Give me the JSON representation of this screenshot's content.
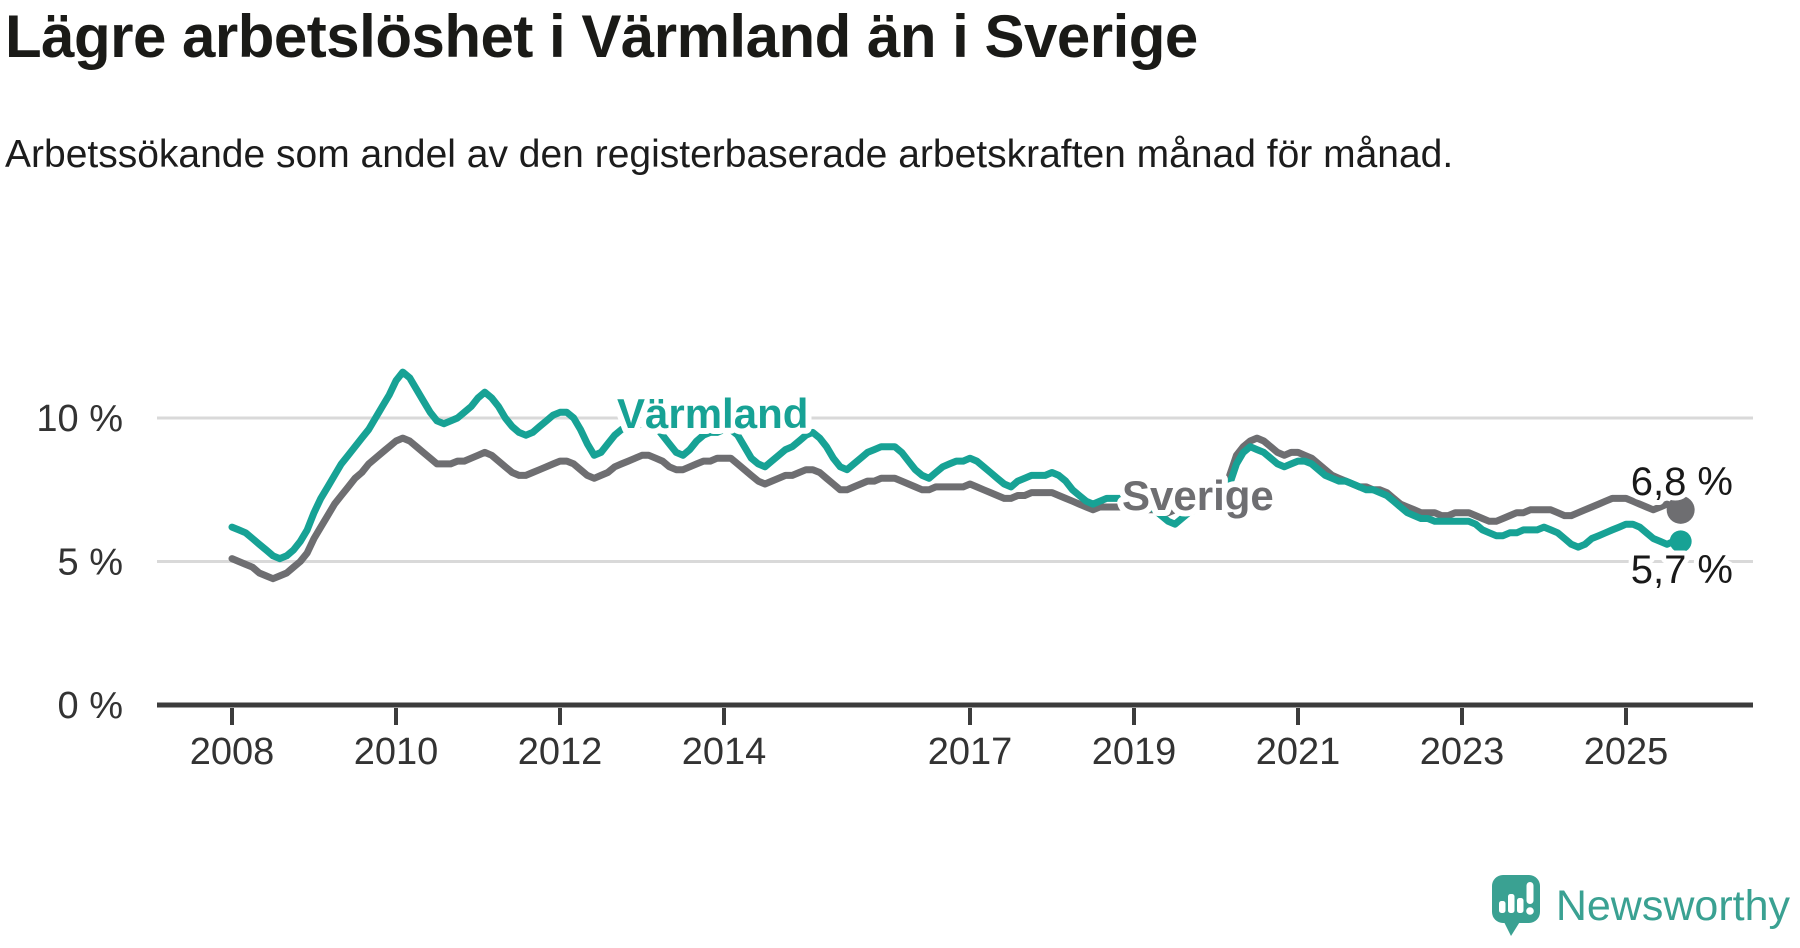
{
  "header": {
    "title": "Lägre arbetslöshet i Värmland än i Sverige",
    "subtitle": "Arbetssökande som andel av den registerbaserade arbetskraften månad för månad."
  },
  "footer": {
    "brand": "Newsworthy"
  },
  "colors": {
    "varmland": "#17a295",
    "sverige": "#6e6e71",
    "axis": "#3c3c3c",
    "grid": "#d9d9d9",
    "text": "#333333",
    "end_label": "#191919",
    "logo": "#3aa192"
  },
  "chart_data": {
    "type": "line",
    "title": "Lägre arbetslöshet i Värmland än i Sverige",
    "subtitle": "Arbetssökande som andel av den registerbaserade arbetskraften månad för månad.",
    "unit": "percent",
    "x_interval": "month",
    "x_start": "2008-01",
    "x_end": "2025-09",
    "xtick_years": [
      2008,
      2010,
      2012,
      2014,
      2017,
      2019,
      2021,
      2023,
      2025
    ],
    "ytick_values": [
      0,
      5,
      10
    ],
    "ytick_labels": [
      "0 %",
      "5 %",
      "10 %"
    ],
    "ylim": [
      0,
      12.3
    ],
    "grid": "horizontal",
    "legend": "inline-labels",
    "series": [
      {
        "name": "Sverige",
        "color": "#6e6e71",
        "end_label": "6,8 %",
        "values": [
          5.1,
          5.0,
          4.9,
          4.8,
          4.6,
          4.5,
          4.4,
          4.5,
          4.6,
          4.8,
          5.0,
          5.3,
          5.8,
          6.2,
          6.6,
          7.0,
          7.3,
          7.6,
          7.9,
          8.1,
          8.4,
          8.6,
          8.8,
          9.0,
          9.2,
          9.3,
          9.2,
          9.0,
          8.8,
          8.6,
          8.4,
          8.4,
          8.4,
          8.5,
          8.5,
          8.6,
          8.7,
          8.8,
          8.7,
          8.5,
          8.3,
          8.1,
          8.0,
          8.0,
          8.1,
          8.2,
          8.3,
          8.4,
          8.5,
          8.5,
          8.4,
          8.2,
          8.0,
          7.9,
          8.0,
          8.1,
          8.3,
          8.4,
          8.5,
          8.6,
          8.7,
          8.7,
          8.6,
          8.5,
          8.3,
          8.2,
          8.2,
          8.3,
          8.4,
          8.5,
          8.5,
          8.6,
          8.6,
          8.6,
          8.4,
          8.2,
          8.0,
          7.8,
          7.7,
          7.8,
          7.9,
          8.0,
          8.0,
          8.1,
          8.2,
          8.2,
          8.1,
          7.9,
          7.7,
          7.5,
          7.5,
          7.6,
          7.7,
          7.8,
          7.8,
          7.9,
          7.9,
          7.9,
          7.8,
          7.7,
          7.6,
          7.5,
          7.5,
          7.6,
          7.6,
          7.6,
          7.6,
          7.6,
          7.7,
          7.6,
          7.5,
          7.4,
          7.3,
          7.2,
          7.2,
          7.3,
          7.3,
          7.4,
          7.4,
          7.4,
          7.4,
          7.3,
          7.2,
          7.1,
          7.0,
          6.9,
          6.8,
          6.9,
          6.9,
          6.9,
          6.9,
          7.0,
          7.0,
          6.9,
          6.8,
          6.8,
          6.7,
          6.7,
          6.8,
          6.9,
          7.0,
          7.1,
          7.1,
          7.2,
          7.3,
          7.4,
          8.0,
          8.7,
          9.0,
          9.2,
          9.3,
          9.2,
          9.0,
          8.8,
          8.7,
          8.8,
          8.8,
          8.7,
          8.6,
          8.4,
          8.2,
          8.0,
          7.9,
          7.8,
          7.7,
          7.6,
          7.6,
          7.5,
          7.5,
          7.4,
          7.2,
          7.0,
          6.9,
          6.8,
          6.7,
          6.7,
          6.7,
          6.6,
          6.6,
          6.7,
          6.7,
          6.7,
          6.6,
          6.5,
          6.4,
          6.4,
          6.5,
          6.6,
          6.7,
          6.7,
          6.8,
          6.8,
          6.8,
          6.8,
          6.7,
          6.6,
          6.6,
          6.7,
          6.8,
          6.9,
          7.0,
          7.1,
          7.2,
          7.2,
          7.2,
          7.1,
          7.0,
          6.9,
          6.8,
          6.9,
          7.0,
          6.9,
          6.8
        ]
      },
      {
        "name": "Värmland",
        "color": "#17a295",
        "end_label": "5,7 %",
        "values": [
          6.2,
          6.1,
          6.0,
          5.8,
          5.6,
          5.4,
          5.2,
          5.1,
          5.2,
          5.4,
          5.7,
          6.1,
          6.7,
          7.2,
          7.6,
          8.0,
          8.4,
          8.7,
          9.0,
          9.3,
          9.6,
          10.0,
          10.4,
          10.8,
          11.3,
          11.6,
          11.4,
          11.0,
          10.6,
          10.2,
          9.9,
          9.8,
          9.9,
          10.0,
          10.2,
          10.4,
          10.7,
          10.9,
          10.7,
          10.4,
          10.0,
          9.7,
          9.5,
          9.4,
          9.5,
          9.7,
          9.9,
          10.1,
          10.2,
          10.2,
          10.0,
          9.6,
          9.1,
          8.7,
          8.8,
          9.1,
          9.4,
          9.6,
          9.7,
          9.7,
          9.8,
          9.9,
          9.7,
          9.4,
          9.1,
          8.8,
          8.7,
          8.9,
          9.2,
          9.4,
          9.5,
          9.5,
          9.6,
          9.6,
          9.4,
          9.0,
          8.6,
          8.4,
          8.3,
          8.5,
          8.7,
          8.9,
          9.0,
          9.2,
          9.4,
          9.5,
          9.3,
          9.0,
          8.6,
          8.3,
          8.2,
          8.4,
          8.6,
          8.8,
          8.9,
          9.0,
          9.0,
          9.0,
          8.8,
          8.5,
          8.2,
          8.0,
          7.9,
          8.1,
          8.3,
          8.4,
          8.5,
          8.5,
          8.6,
          8.5,
          8.3,
          8.1,
          7.9,
          7.7,
          7.6,
          7.8,
          7.9,
          8.0,
          8.0,
          8.0,
          8.1,
          8.0,
          7.8,
          7.5,
          7.3,
          7.1,
          7.0,
          7.1,
          7.2,
          7.2,
          7.2,
          7.3,
          7.3,
          7.2,
          7.0,
          6.8,
          6.6,
          6.4,
          6.3,
          6.5,
          6.7,
          6.8,
          6.9,
          7.0,
          7.1,
          7.2,
          7.7,
          8.4,
          8.8,
          9.0,
          8.9,
          8.8,
          8.6,
          8.4,
          8.3,
          8.4,
          8.5,
          8.5,
          8.4,
          8.2,
          8.0,
          7.9,
          7.8,
          7.8,
          7.7,
          7.6,
          7.5,
          7.5,
          7.4,
          7.3,
          7.1,
          6.9,
          6.7,
          6.6,
          6.5,
          6.5,
          6.4,
          6.4,
          6.4,
          6.4,
          6.4,
          6.4,
          6.3,
          6.1,
          6.0,
          5.9,
          5.9,
          6.0,
          6.0,
          6.1,
          6.1,
          6.1,
          6.2,
          6.1,
          6.0,
          5.8,
          5.6,
          5.5,
          5.6,
          5.8,
          5.9,
          6.0,
          6.1,
          6.2,
          6.3,
          6.3,
          6.2,
          6.0,
          5.8,
          5.7,
          5.6,
          5.7,
          5.7
        ]
      }
    ]
  }
}
